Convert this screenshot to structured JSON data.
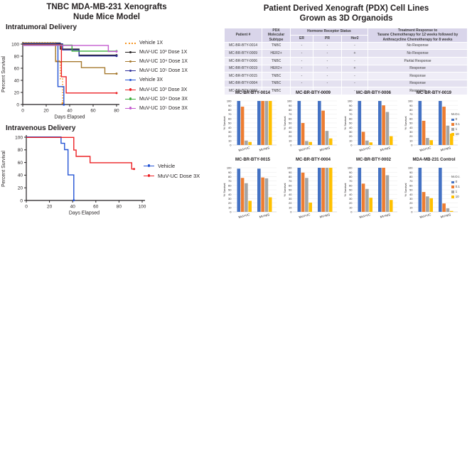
{
  "left_panel": {
    "title_line1": "TNBC MDA-MB-231 Xenografts",
    "title_line2": "Nude Mice Model",
    "intratumoral_label": "Intratumoral Delivery",
    "intravenous_label": "Intravenous Delivery"
  },
  "right_panel": {
    "title_line1": "Patient Derived Xenograft (PDX) Cell Lines",
    "title_line2": "Grown as 3D Organoids",
    "table": {
      "headers": {
        "patient": "Patient #",
        "subtype": "PDX\nMolecular\nSubtype",
        "hormone_group": "Hormone Receptor Status",
        "er": "ER",
        "pr": "PR",
        "her2": "Her2",
        "treatment": "Treatment Response to\nTaxane Chemotherapy for 12 weeks followed by\nAnthracycline Chemotherapy for 8 weeks"
      },
      "rows": [
        {
          "patient": "MC-BR-BTY-0014",
          "subtype": "TNBC",
          "er": "-",
          "pr": "-",
          "her2": "-",
          "response": "No Response"
        },
        {
          "patient": "MC-BR-BTY-0009",
          "subtype": "HER2+",
          "er": "-",
          "pr": "-",
          "her2": "+",
          "response": "No Response"
        },
        {
          "patient": "MC-BR-BTY-0006",
          "subtype": "TNBC",
          "er": "-",
          "pr": "-",
          "her2": "-",
          "response": "Partial Response"
        },
        {
          "patient": "MC-BR-BTY-0019",
          "subtype": "HER2+",
          "er": "-",
          "pr": "-",
          "her2": "+",
          "response": "Response"
        },
        {
          "patient": "MC-BR-BTY-0015",
          "subtype": "TNBC",
          "er": "-",
          "pr": "-",
          "her2": "-",
          "response": "Response"
        },
        {
          "patient": "MC-BR-BTY-0004",
          "subtype": "TNBC",
          "er": "-",
          "pr": "-",
          "her2": "-",
          "response": "Response"
        },
        {
          "patient": "MC-BR-BTY-0002",
          "subtype": "TNBC",
          "er": "-",
          "pr": "-",
          "her2": "-",
          "response": "Response"
        }
      ]
    },
    "moi_legend": {
      "title": "M.O.I.",
      "entries": [
        {
          "label": "0",
          "color": "#4472C4"
        },
        {
          "label": "0.1",
          "color": "#ED7D31"
        },
        {
          "label": "1",
          "color": "#A5A5A5"
        },
        {
          "label": "10",
          "color": "#FFC000"
        }
      ]
    }
  },
  "chart_data": [
    {
      "id": "km-intratumoral",
      "type": "line",
      "kind": "kaplan-meier",
      "title": "Intratumoral Delivery",
      "xlabel": "Days Elapsed",
      "ylabel": "Percent Survival",
      "xlim": [
        0,
        80
      ],
      "ylim": [
        0,
        100
      ],
      "xticks": [
        0,
        20,
        40,
        60,
        80
      ],
      "yticks": [
        0,
        20,
        40,
        60,
        80,
        100
      ],
      "legend_position": "right",
      "series": [
        {
          "name": "Vehicle 1X",
          "color": "#F79421",
          "dash": "dotted",
          "points": [
            [
              0,
              100
            ],
            [
              28,
              100
            ],
            [
              28,
              70
            ],
            [
              32,
              70
            ],
            [
              32,
              40
            ],
            [
              34,
              40
            ],
            [
              34,
              0
            ]
          ]
        },
        {
          "name": "MuV-UC 10³ Dose 1X",
          "color": "#231F20",
          "dash": "solid",
          "points": [
            [
              0,
              100
            ],
            [
              32,
              100
            ],
            [
              32,
              90
            ],
            [
              48,
              90
            ],
            [
              48,
              80
            ],
            [
              80,
              80
            ]
          ]
        },
        {
          "name": "MuV-UC 10⁴ Dose 1X",
          "color": "#A6792E",
          "dash": "solid",
          "points": [
            [
              0,
              100
            ],
            [
              28,
              100
            ],
            [
              28,
              70
            ],
            [
              50,
              70
            ],
            [
              50,
              60
            ],
            [
              70,
              60
            ],
            [
              70,
              50
            ],
            [
              80,
              50
            ]
          ]
        },
        {
          "name": "MuV-UC 10⁵ Dose 1X",
          "color": "#31319B",
          "dash": "solid",
          "points": [
            [
              0,
              100
            ],
            [
              34,
              100
            ],
            [
              34,
              90
            ],
            [
              48,
              90
            ],
            [
              48,
              80
            ],
            [
              80,
              80
            ]
          ]
        },
        {
          "name": "Vehicle 3X",
          "color": "#2353D4",
          "dash": "solid",
          "points": [
            [
              0,
              100
            ],
            [
              30,
              100
            ],
            [
              30,
              30
            ],
            [
              35,
              30
            ],
            [
              35,
              0
            ]
          ]
        },
        {
          "name": "MuV-UC 10³ Dose 3X",
          "color": "#EC2024",
          "dash": "solid",
          "points": [
            [
              0,
              100
            ],
            [
              33,
              100
            ],
            [
              33,
              47
            ],
            [
              37,
              47
            ],
            [
              37,
              20
            ],
            [
              80,
              20
            ]
          ]
        },
        {
          "name": "MuV-UC 10⁴ Dose 3X",
          "color": "#3AAE3A",
          "dash": "solid",
          "points": [
            [
              0,
              100
            ],
            [
              42,
              100
            ],
            [
              42,
              90
            ],
            [
              80,
              90
            ]
          ]
        },
        {
          "name": "MuV-UC 10⁵ Dose 3X",
          "color": "#C45BCF",
          "dash": "solid",
          "points": [
            [
              0,
              100
            ],
            [
              73,
              100
            ],
            [
              73,
              90
            ],
            [
              80,
              90
            ]
          ]
        }
      ]
    },
    {
      "id": "km-intravenous",
      "type": "line",
      "kind": "kaplan-meier",
      "title": "Intravenous Delivery",
      "xlabel": "Days Elapsed",
      "ylabel": "Percent Survival",
      "xlim": [
        0,
        100
      ],
      "ylim": [
        0,
        100
      ],
      "xticks": [
        0,
        20,
        40,
        60,
        80,
        100
      ],
      "yticks": [
        0,
        20,
        40,
        60,
        80,
        100
      ],
      "legend_position": "right",
      "series": [
        {
          "name": "Vehicle",
          "color": "#2353D4",
          "dash": "solid",
          "points": [
            [
              0,
              100
            ],
            [
              30,
              100
            ],
            [
              30,
              90
            ],
            [
              33,
              90
            ],
            [
              33,
              80
            ],
            [
              36,
              80
            ],
            [
              36,
              40
            ],
            [
              41,
              40
            ],
            [
              41,
              0
            ]
          ]
        },
        {
          "name": "MuV-UC Dose 3X",
          "color": "#EC2024",
          "dash": "solid",
          "points": [
            [
              0,
              100
            ],
            [
              41,
              100
            ],
            [
              41,
              80
            ],
            [
              43,
              80
            ],
            [
              43,
              70
            ],
            [
              55,
              70
            ],
            [
              55,
              60
            ],
            [
              91,
              60
            ],
            [
              91,
              50
            ],
            [
              93,
              50
            ]
          ]
        }
      ]
    },
    {
      "id": "org-0014",
      "type": "bar",
      "title": "MC-BR-BTY-0014",
      "ylabel": "% Survival",
      "ylim": [
        0,
        100
      ],
      "categories": [
        "MuV-UC",
        "MV-NIS"
      ],
      "legend": false,
      "series": [
        {
          "name": "0",
          "color": "#4472C4",
          "values": [
            100,
            100
          ]
        },
        {
          "name": "0.1",
          "color": "#ED7D31",
          "values": [
            87,
            100
          ]
        },
        {
          "name": "1",
          "color": "#A5A5A5",
          "values": [
            10,
            100
          ]
        },
        {
          "name": "10",
          "color": "#FFC000",
          "values": [
            7,
            100
          ]
        }
      ]
    },
    {
      "id": "org-0009",
      "type": "bar",
      "title": "MC-BR-BTY-0009",
      "ylabel": "% Survival",
      "ylim": [
        0,
        100
      ],
      "categories": [
        "MuV-UC",
        "MV-NIS"
      ],
      "legend": false,
      "series": [
        {
          "name": "0",
          "color": "#4472C4",
          "values": [
            100,
            100
          ]
        },
        {
          "name": "0.1",
          "color": "#ED7D31",
          "values": [
            50,
            78
          ]
        },
        {
          "name": "1",
          "color": "#A5A5A5",
          "values": [
            9,
            32
          ]
        },
        {
          "name": "10",
          "color": "#FFC000",
          "values": [
            7,
            15
          ]
        }
      ]
    },
    {
      "id": "org-0006",
      "type": "bar",
      "title": "MC-BR-BTY-0006",
      "ylabel": "% Survival",
      "ylim": [
        0,
        100
      ],
      "categories": [
        "MuV-UC",
        "MV-NIS"
      ],
      "legend": false,
      "series": [
        {
          "name": "0",
          "color": "#4472C4",
          "values": [
            100,
            100
          ]
        },
        {
          "name": "0.1",
          "color": "#ED7D31",
          "values": [
            30,
            90
          ]
        },
        {
          "name": "1",
          "color": "#A5A5A5",
          "values": [
            10,
            75
          ]
        },
        {
          "name": "10",
          "color": "#FFC000",
          "values": [
            6,
            20
          ]
        }
      ]
    },
    {
      "id": "org-0019",
      "type": "bar",
      "title": "MC-BR-BTY-0019",
      "ylabel": "% Survival",
      "ylim": [
        0,
        100
      ],
      "categories": [
        "MuV-UC",
        "MV-NIS"
      ],
      "legend": true,
      "series": [
        {
          "name": "0",
          "color": "#4472C4",
          "values": [
            100,
            100
          ]
        },
        {
          "name": "0.1",
          "color": "#ED7D31",
          "values": [
            55,
            87
          ]
        },
        {
          "name": "1",
          "color": "#A5A5A5",
          "values": [
            16,
            44
          ]
        },
        {
          "name": "10",
          "color": "#FFC000",
          "values": [
            11,
            26
          ]
        }
      ]
    },
    {
      "id": "org-0015",
      "type": "bar",
      "title": "MC-BR-BTY-0015",
      "ylabel": "% Survival",
      "ylim": [
        0,
        100
      ],
      "categories": [
        "MuV-UC",
        "MV-NIS"
      ],
      "legend": false,
      "series": [
        {
          "name": "0",
          "color": "#4472C4",
          "values": [
            98,
            98
          ]
        },
        {
          "name": "0.1",
          "color": "#ED7D31",
          "values": [
            77,
            78
          ]
        },
        {
          "name": "1",
          "color": "#A5A5A5",
          "values": [
            65,
            76
          ]
        },
        {
          "name": "10",
          "color": "#FFC000",
          "values": [
            25,
            33
          ]
        }
      ]
    },
    {
      "id": "org-0004",
      "type": "bar",
      "title": "MC-BR-BTY-0004",
      "ylabel": "% Survival",
      "ylim": [
        0,
        100
      ],
      "categories": [
        "MuV-UC",
        "MV-NIS"
      ],
      "legend": false,
      "series": [
        {
          "name": "0",
          "color": "#4472C4",
          "values": [
            100,
            100
          ]
        },
        {
          "name": "0.1",
          "color": "#ED7D31",
          "values": [
            89,
            100
          ]
        },
        {
          "name": "1",
          "color": "#A5A5A5",
          "values": [
            77,
            100
          ]
        },
        {
          "name": "10",
          "color": "#FFC000",
          "values": [
            21,
            100
          ]
        }
      ]
    },
    {
      "id": "org-0002",
      "type": "bar",
      "title": "MC-BR-BTY-0002",
      "ylabel": "% Survival",
      "ylim": [
        0,
        100
      ],
      "categories": [
        "MuV-UC",
        "MV-NIS"
      ],
      "legend": false,
      "series": [
        {
          "name": "0",
          "color": "#4472C4",
          "values": [
            100,
            100
          ]
        },
        {
          "name": "0.1",
          "color": "#ED7D31",
          "values": [
            64,
            100
          ]
        },
        {
          "name": "1",
          "color": "#A5A5A5",
          "values": [
            52,
            83
          ]
        },
        {
          "name": "10",
          "color": "#FFC000",
          "values": [
            32,
            27
          ]
        }
      ]
    },
    {
      "id": "org-mda",
      "type": "bar",
      "title": "MDA-MB-231 Control",
      "ylabel": "% Survival",
      "ylim": [
        0,
        100
      ],
      "categories": [
        "MuV-UC",
        "MV-NIS"
      ],
      "legend": true,
      "series": [
        {
          "name": "0",
          "color": "#4472C4",
          "values": [
            100,
            100
          ]
        },
        {
          "name": "0.1",
          "color": "#ED7D31",
          "values": [
            45,
            19
          ]
        },
        {
          "name": "1",
          "color": "#A5A5A5",
          "values": [
            35,
            8
          ]
        },
        {
          "name": "10",
          "color": "#FFC000",
          "values": [
            31,
            2
          ]
        }
      ]
    }
  ]
}
